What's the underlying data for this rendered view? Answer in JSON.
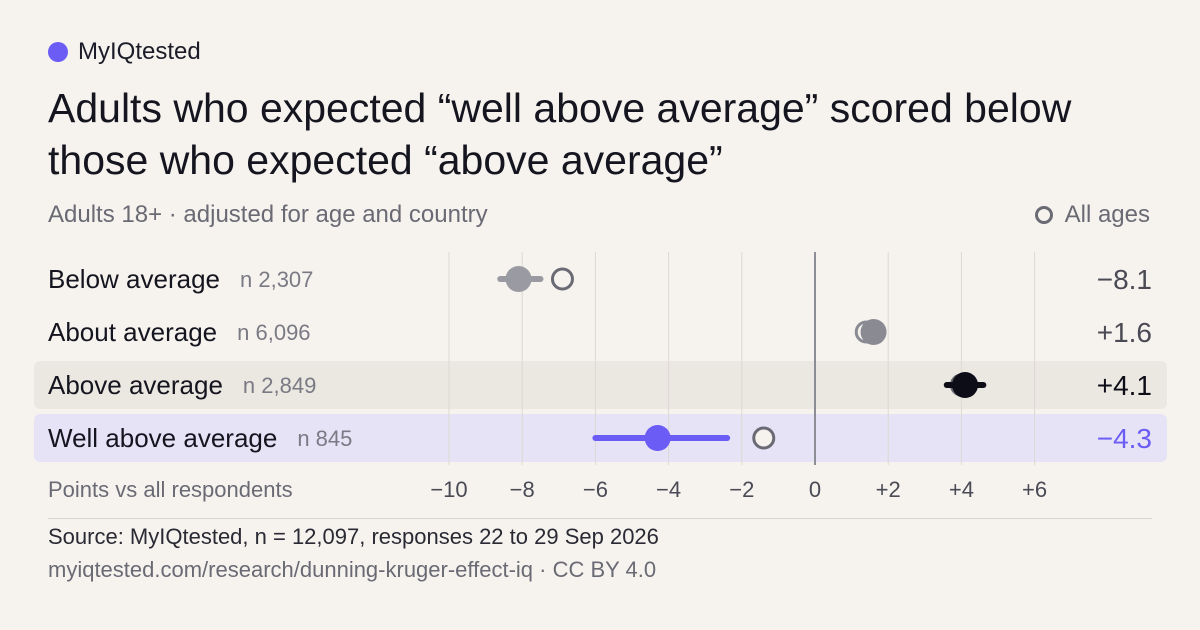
{
  "brand": {
    "name": "MyIQtested",
    "dot_color": "#6b5cf6"
  },
  "title": "Adults who expected “well above average” scored below those who expected “above average”",
  "subtitle": "Adults 18+ · adjusted for age and country",
  "legend": {
    "all_ages_label": "All ages"
  },
  "footer": {
    "source": "Source: MyIQtested, n = 12,097, responses 22 to 29 Sep 2026",
    "url": "myiqtested.com/research/dunning-kruger-effect-iq · CC BY 4.0"
  },
  "chart_data": {
    "type": "dot-interval",
    "xlabel": "Points vs all respondents",
    "xlim": [
      -11,
      7
    ],
    "ticks": [
      -10,
      -8,
      -6,
      -4,
      -2,
      0,
      2,
      4,
      6
    ],
    "tick_labels": [
      "−10",
      "−8",
      "−6",
      "−4",
      "−2",
      "0",
      "+2",
      "+4",
      "+6"
    ],
    "grid": true,
    "rows": [
      {
        "label": "Below average",
        "n": "n 2,307",
        "value": -8.1,
        "value_label": "−8.1",
        "ci": [
          -8.6,
          -7.5
        ],
        "all_ages": -6.9,
        "highlight": "none",
        "color": "#9a9ba2",
        "value_color": "#4a4a54"
      },
      {
        "label": "About average",
        "n": "n 6,096",
        "value": 1.6,
        "value_label": "+1.6",
        "ci": [
          1.4,
          1.8
        ],
        "all_ages": 1.4,
        "highlight": "none",
        "color": "#8a8b92",
        "value_color": "#4a4a54"
      },
      {
        "label": "Above average",
        "n": "n 2,849",
        "value": 4.1,
        "value_label": "+4.1",
        "ci": [
          3.6,
          4.6
        ],
        "all_ages": 4.0,
        "highlight": "gray",
        "color": "#0d0d18",
        "value_color": "#0d0d18"
      },
      {
        "label": "Well above average",
        "n": "n 845",
        "value": -4.3,
        "value_label": "−4.3",
        "ci": [
          -6.0,
          -2.4
        ],
        "all_ages": -1.4,
        "highlight": "purple",
        "color": "#6b5cf6",
        "value_color": "#6b5cf6"
      }
    ]
  }
}
